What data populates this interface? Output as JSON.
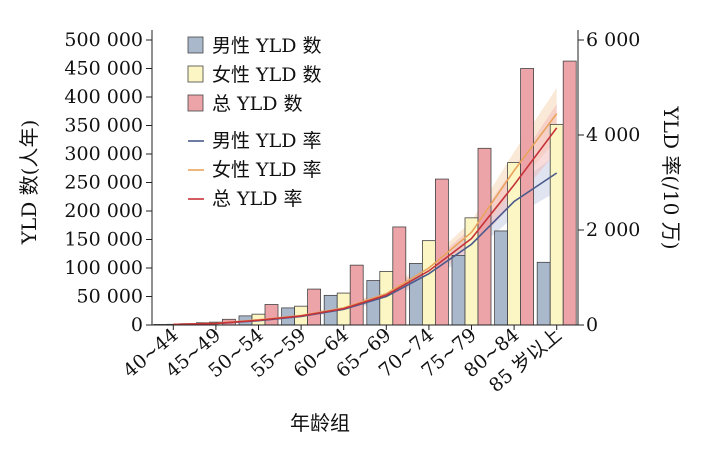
{
  "chart_data": {
    "type": "bar",
    "title": "",
    "xlabel": "年龄组",
    "ylabel": "YLD 数(人年)",
    "y2label": "YLD 率(/10 万)",
    "categories": [
      "40~44",
      "45~49",
      "50~54",
      "55~59",
      "60~64",
      "65~69",
      "70~74",
      "75~79",
      "80~84",
      "85 岁以上"
    ],
    "ylim": [
      0,
      500000
    ],
    "y2lim": [
      0,
      6000
    ],
    "y_ticks": [
      "0",
      "50 000",
      "100 000",
      "150 000",
      "200 000",
      "250 000",
      "300 000",
      "350 000",
      "400 000",
      "450 000",
      "500 000"
    ],
    "y2_ticks": [
      "0",
      "2 000",
      "4 000",
      "6 000"
    ],
    "bar_series": [
      {
        "name": "男性 YLD 数",
        "color": "#aab8cc",
        "values": [
          1000,
          4000,
          16000,
          30000,
          52000,
          78000,
          108000,
          122000,
          165000,
          110000
        ]
      },
      {
        "name": "女性 YLD 数",
        "color": "#fbf6c4",
        "values": [
          1200,
          5000,
          19000,
          33000,
          56000,
          94000,
          148000,
          188000,
          285000,
          352000
        ]
      },
      {
        "name": "总 YLD 数",
        "color": "#eca4a8",
        "values": [
          2200,
          10000,
          36000,
          63000,
          105000,
          172000,
          256000,
          310000,
          450000,
          463000
        ]
      }
    ],
    "line_series": [
      {
        "name": "男性 YLD 率",
        "color": "#4a5a8c",
        "band": "#bfc9e2",
        "values": [
          10,
          30,
          90,
          180,
          330,
          600,
          1080,
          1700,
          2600,
          3200
        ]
      },
      {
        "name": "女性 YLD 率",
        "color": "#e9a35c",
        "band": "#f5d3ae",
        "values": [
          12,
          35,
          110,
          200,
          360,
          660,
          1200,
          1950,
          3250,
          4450
        ]
      },
      {
        "name": "总 YLD 率",
        "color": "#c8333a",
        "band": "#f1b7b7",
        "values": [
          11,
          32,
          100,
          190,
          345,
          630,
          1140,
          1820,
          2950,
          4150
        ]
      }
    ],
    "legend_position": "top-left",
    "grid": false
  }
}
